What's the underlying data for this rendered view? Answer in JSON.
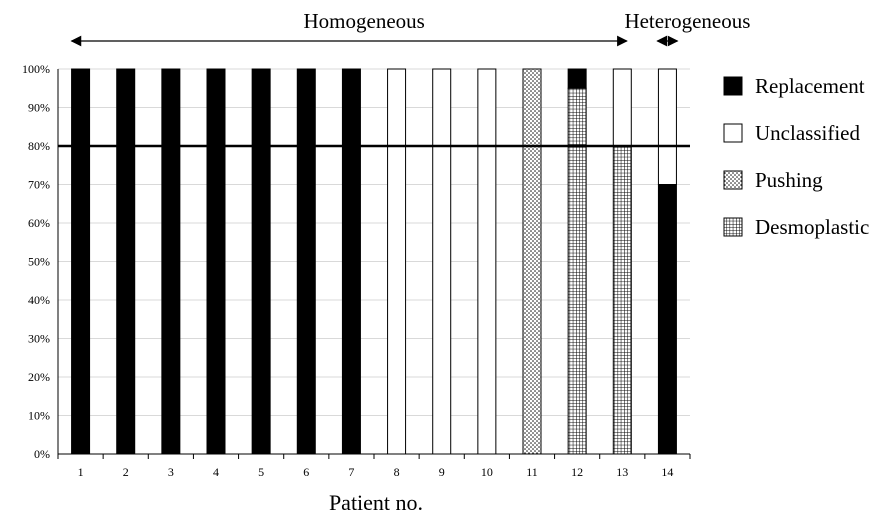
{
  "chart_data": {
    "type": "bar",
    "stacked": true,
    "normalized": true,
    "xlabel": "Patient no.",
    "ylabel": "",
    "ylim": [
      0,
      100
    ],
    "yticks": [
      "0%",
      "10%",
      "20%",
      "30%",
      "40%",
      "50%",
      "60%",
      "70%",
      "80%",
      "90%",
      "100%"
    ],
    "grid": true,
    "legend_position": "right",
    "reference_line": 80,
    "categories": [
      "1",
      "2",
      "3",
      "4",
      "5",
      "6",
      "7",
      "8",
      "9",
      "10",
      "11",
      "12",
      "13",
      "14"
    ],
    "series": [
      {
        "name": "Replacement",
        "fill": "solid",
        "color": "#000000",
        "values": [
          100,
          100,
          100,
          100,
          100,
          100,
          100,
          0,
          0,
          0,
          0,
          5,
          0,
          70
        ]
      },
      {
        "name": "Unclassified",
        "fill": "empty",
        "color": "#ffffff",
        "values": [
          0,
          0,
          0,
          0,
          0,
          0,
          0,
          100,
          100,
          100,
          0,
          0,
          20,
          30
        ]
      },
      {
        "name": "Pushing",
        "fill": "dots",
        "color": "#ffffff",
        "values": [
          0,
          0,
          0,
          0,
          0,
          0,
          0,
          0,
          0,
          0,
          100,
          0,
          0,
          0
        ]
      },
      {
        "name": "Desmoplastic",
        "fill": "grid",
        "color": "#ffffff",
        "values": [
          0,
          0,
          0,
          0,
          0,
          0,
          0,
          0,
          0,
          0,
          0,
          95,
          80,
          0
        ]
      }
    ],
    "stack_order": [
      "Desmoplastic",
      "Pushing",
      "Replacement",
      "Unclassified"
    ],
    "groups": [
      {
        "label": "Homogeneous",
        "from": "1",
        "to": "13"
      },
      {
        "label": "Heterogeneous",
        "from": "14",
        "to": "14"
      }
    ]
  }
}
